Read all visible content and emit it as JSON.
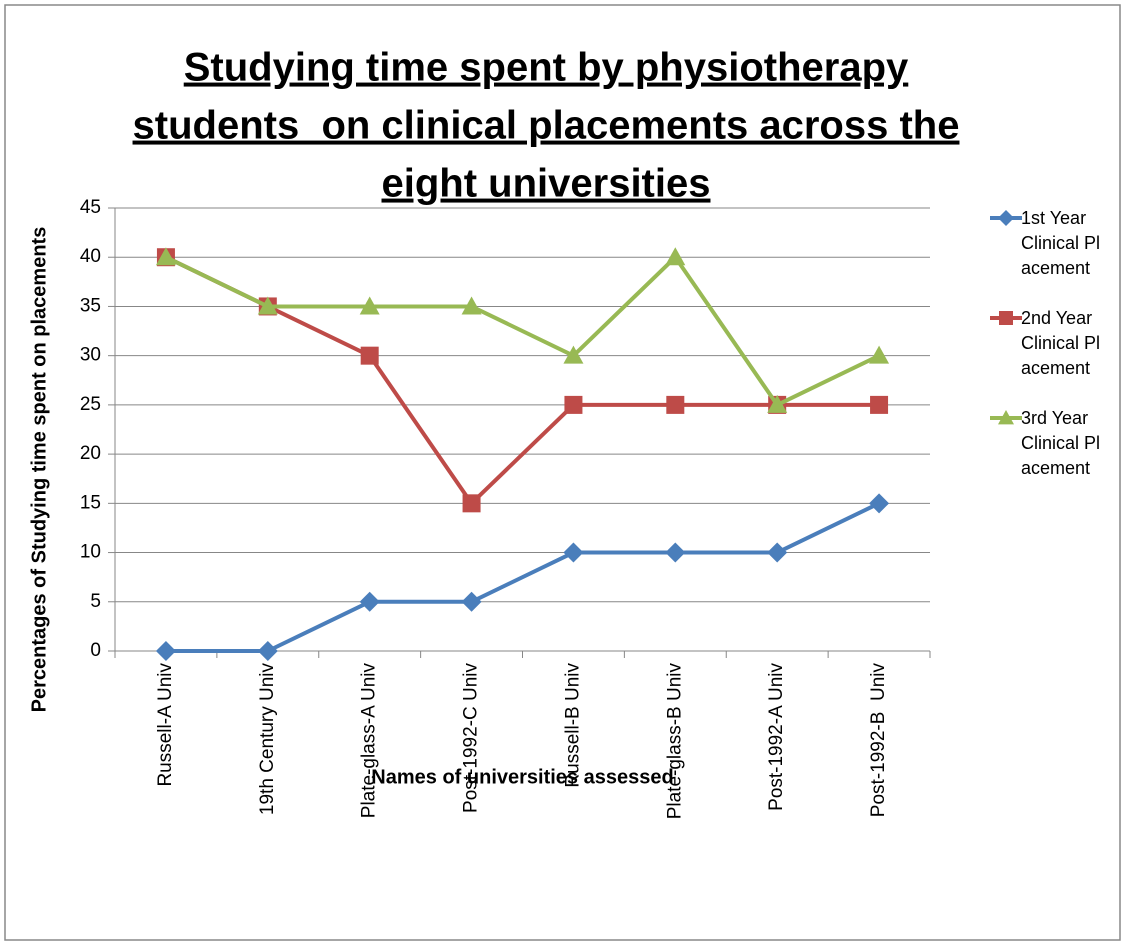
{
  "chart_data": {
    "type": "line",
    "title": [
      "Studying time spent by physiotherapy",
      "students  on clinical placements across the",
      "eight universities"
    ],
    "x_label": "Names of universities assessed",
    "y_label": "Percentages of Studying time spent on placements",
    "categories": [
      "Russell-A Univ",
      "19th Century Univ",
      "Plate-glass-A Univ",
      "Post-1992-C Univ",
      "Russell-B Univ",
      "Plate-glass-B Univ",
      "Post-1992-A Univ",
      "Post-1992-B  Univ"
    ],
    "series": [
      {
        "name": "1st Year Clinical Placement",
        "color": "#4a7ebb",
        "marker": "diamond",
        "values": [
          0,
          0,
          5,
          5,
          10,
          10,
          10,
          15
        ]
      },
      {
        "name": "2nd Year Clinical Placement",
        "color": "#be4b48",
        "marker": "square",
        "values": [
          40,
          35,
          30,
          15,
          25,
          25,
          25,
          25
        ]
      },
      {
        "name": "3rd Year Clinical Placement",
        "color": "#98b954",
        "marker": "triangle",
        "values": [
          40,
          35,
          35,
          35,
          30,
          40,
          25,
          30
        ]
      }
    ],
    "ylim": [
      0,
      45
    ],
    "yticks": [
      0,
      5,
      10,
      15,
      20,
      25,
      30,
      35,
      40,
      45
    ],
    "grid": true,
    "legend": "right"
  }
}
